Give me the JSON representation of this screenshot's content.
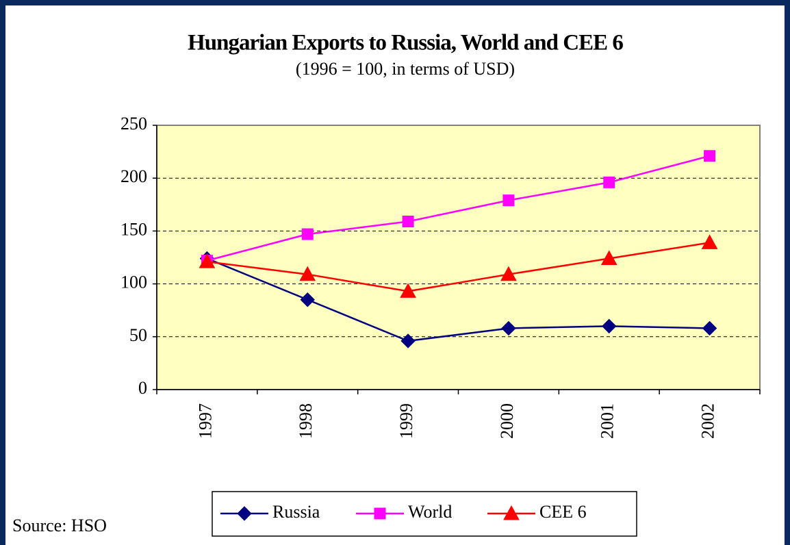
{
  "chart_data": {
    "type": "line",
    "title": "Hungarian Exports to Russia, World and CEE 6",
    "subtitle": "(1996 = 100,  in terms of USD)",
    "source": "Source: HSO",
    "categories": [
      "1997",
      "1998",
      "1999",
      "2000",
      "2001",
      "2002"
    ],
    "series": [
      {
        "name": "Russia",
        "color": "#000080",
        "marker": "diamond",
        "values": [
          124,
          85,
          46,
          58,
          60,
          58
        ]
      },
      {
        "name": "World",
        "color": "#ff00ff",
        "marker": "square",
        "values": [
          122,
          147,
          159,
          179,
          196,
          221
        ]
      },
      {
        "name": "CEE 6",
        "color": "#ff0000",
        "marker": "triangle",
        "values": [
          121,
          109,
          93,
          109,
          124,
          139
        ]
      }
    ],
    "ylim": [
      0,
      250
    ],
    "yticks": [
      0,
      50,
      100,
      150,
      200,
      250
    ],
    "grid": true,
    "legend": "bottom"
  }
}
